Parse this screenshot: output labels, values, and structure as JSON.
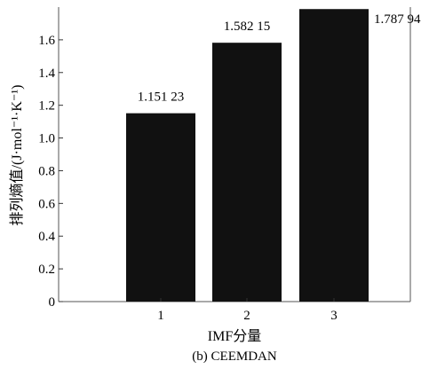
{
  "chart_data": {
    "type": "bar",
    "categories": [
      "1",
      "2",
      "3"
    ],
    "values": [
      1.15123,
      1.58215,
      1.78794
    ],
    "data_labels": [
      "1.151 23",
      "1.582 15",
      "1.787 94"
    ],
    "title": "",
    "xlabel": "IMF分量",
    "ylabel": "排列熵值/(J·mol⁻¹·K⁻¹)",
    "ylim": [
      0,
      1.8
    ],
    "yticks": [
      0,
      0.2,
      0.4,
      0.6,
      0.8,
      1.0,
      1.2,
      1.4,
      1.6
    ],
    "ytick_labels": [
      "0",
      "0.2",
      "0.4",
      "0.6",
      "0.8",
      "1.0",
      "1.2",
      "1.4",
      "1.6"
    ],
    "grid": false,
    "bar_color": "#111111"
  },
  "caption": "(b) CEEMDAN"
}
